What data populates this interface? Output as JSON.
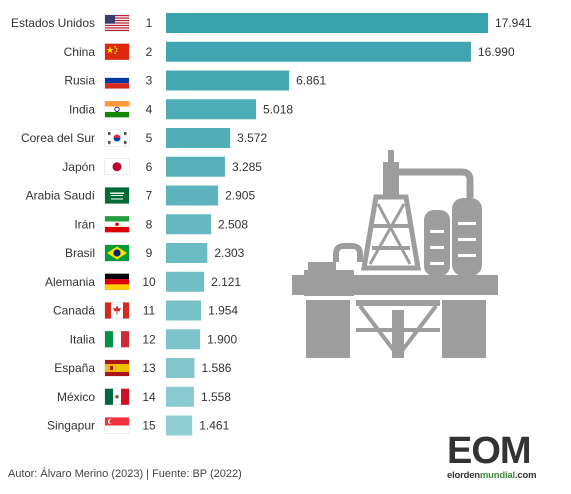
{
  "chart_data": {
    "type": "bar",
    "orientation": "horizontal",
    "categories": [
      "Estados Unidos",
      "China",
      "Rusia",
      "India",
      "Corea del Sur",
      "Japón",
      "Arabia Saudí",
      "Irán",
      "Brasil",
      "Alemania",
      "Canadá",
      "Italia",
      "España",
      "México",
      "Singapur"
    ],
    "ranks": [
      "1",
      "2",
      "3",
      "4",
      "5",
      "6",
      "7",
      "8",
      "9",
      "10",
      "11",
      "12",
      "13",
      "14",
      "15"
    ],
    "values": [
      17941,
      16990,
      6861,
      5018,
      3572,
      3285,
      2905,
      2508,
      2303,
      2121,
      1954,
      1900,
      1586,
      1558,
      1461
    ],
    "value_labels": [
      "17.941",
      "16.990",
      "6.861",
      "5.018",
      "3.572",
      "3.285",
      "2.905",
      "2.508",
      "2.303",
      "2.121",
      "1.954",
      "1.900",
      "1.586",
      "1.558",
      "1.461"
    ],
    "flags": [
      "usa-flag",
      "china-flag",
      "russia-flag",
      "india-flag",
      "south-korea-flag",
      "japan-flag",
      "saudi-arabia-flag",
      "iran-flag",
      "brazil-flag",
      "germany-flag",
      "canada-flag",
      "italy-flag",
      "spain-flag",
      "mexico-flag",
      "singapore-flag"
    ],
    "bar_color_start": "#3aa2ab",
    "bar_color_end": "#8fcdd3",
    "grid": false,
    "legend": "none"
  },
  "illustration": "oil-refinery-icon",
  "footer": {
    "credit": "Autor: Álvaro Merino (2023) | Fuente: BP (2022)"
  },
  "logo": {
    "letters": "EOM",
    "name_prefix": "elorden",
    "name_suffix": "mundial",
    "domain": ".com"
  }
}
